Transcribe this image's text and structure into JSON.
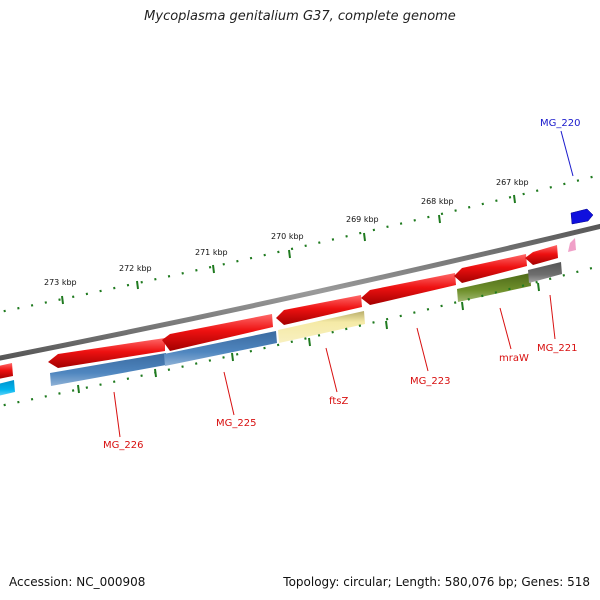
{
  "title": "Mycoplasma genitalium G37, complete genome",
  "footer": {
    "accession": "Accession: NC_000908",
    "topology": "Topology: circular; Length: 580,076 bp; Genes: 518"
  },
  "colors": {
    "backbone": "#7a7a7a",
    "ticks": "#1f7a1f",
    "cds": "#e81010",
    "label_red": "#d81010",
    "label_blue": "#1a1acc",
    "cog_blue": "#4a7fb5",
    "cog_yellow": "#f2e6a0",
    "cog_olive": "#6b8c2a",
    "cog_gray": "#6a6a6a",
    "cog_cyan": "#00aeea",
    "marker_blue": "#1010dd",
    "marker_pink": "#f0a0c8"
  },
  "ruler": {
    "labels": [
      "273 kbp",
      "272 kbp",
      "271 kbp",
      "270 kbp",
      "269 kbp",
      "268 kbp",
      "267 kbp"
    ]
  },
  "genes": [
    {
      "name": "MG_226",
      "color": "label_red"
    },
    {
      "name": "MG_225",
      "color": "label_red"
    },
    {
      "name": "ftsZ",
      "color": "label_red"
    },
    {
      "name": "MG_223",
      "color": "label_red"
    },
    {
      "name": "mraW",
      "color": "label_red"
    },
    {
      "name": "MG_221",
      "color": "label_red"
    },
    {
      "name": "MG_220",
      "color": "label_blue"
    }
  ]
}
